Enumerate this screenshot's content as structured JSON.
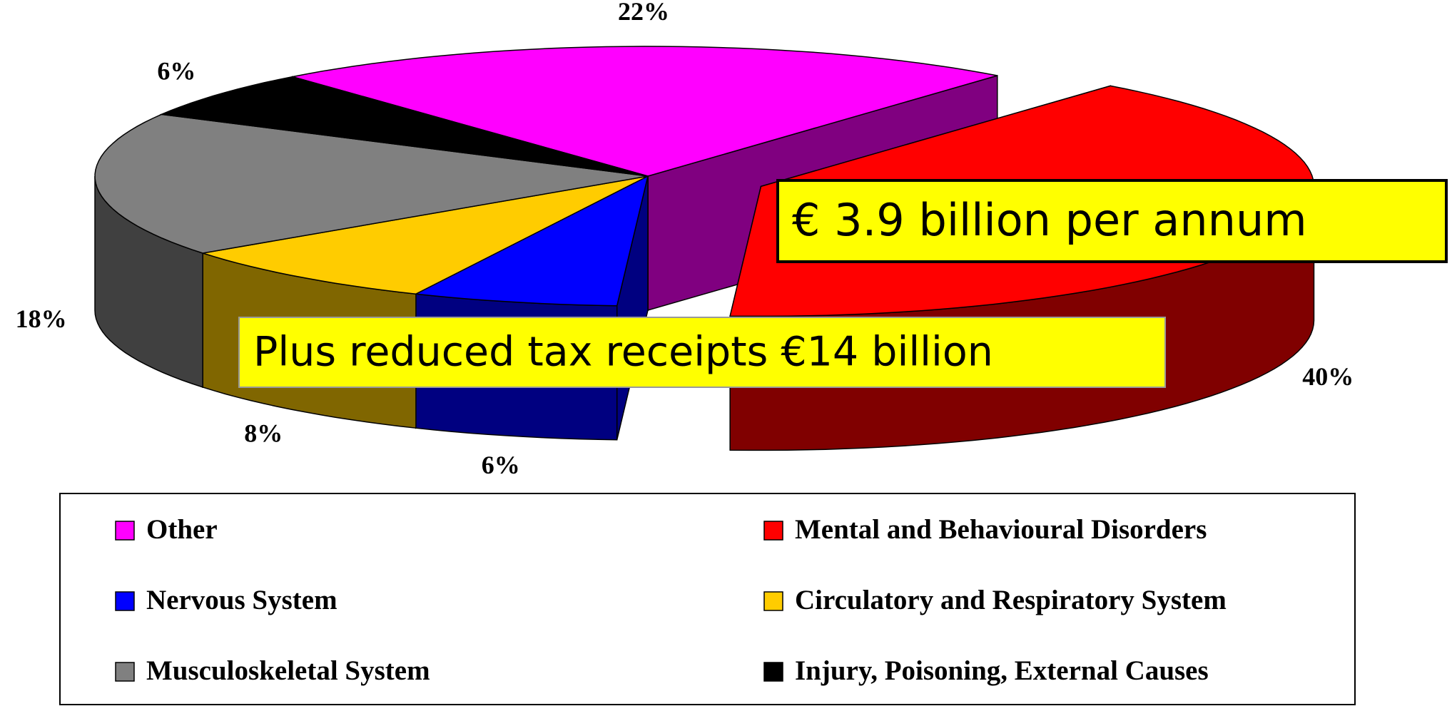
{
  "chart_data": {
    "type": "pie3d",
    "categories": [
      "Other",
      "Mental and Behavioural Disorders",
      "Nervous System",
      "Circulatory and Respiratory System",
      "Musculoskeletal System",
      "Injury, Poisoning, External Causes"
    ],
    "values": [
      22,
      40,
      6,
      8,
      18,
      6
    ],
    "value_labels": [
      "22%",
      "40%",
      "6%",
      "8%",
      "18%",
      "6%"
    ],
    "colors": [
      "#ff00ff",
      "#ff0000",
      "#0000ff",
      "#ffcc00",
      "#808080",
      "#000000"
    ],
    "legend": "bottom",
    "annotations": [
      "€ 3.9 billion per annum",
      "Plus reduced tax receipts €14 billion"
    ]
  }
}
